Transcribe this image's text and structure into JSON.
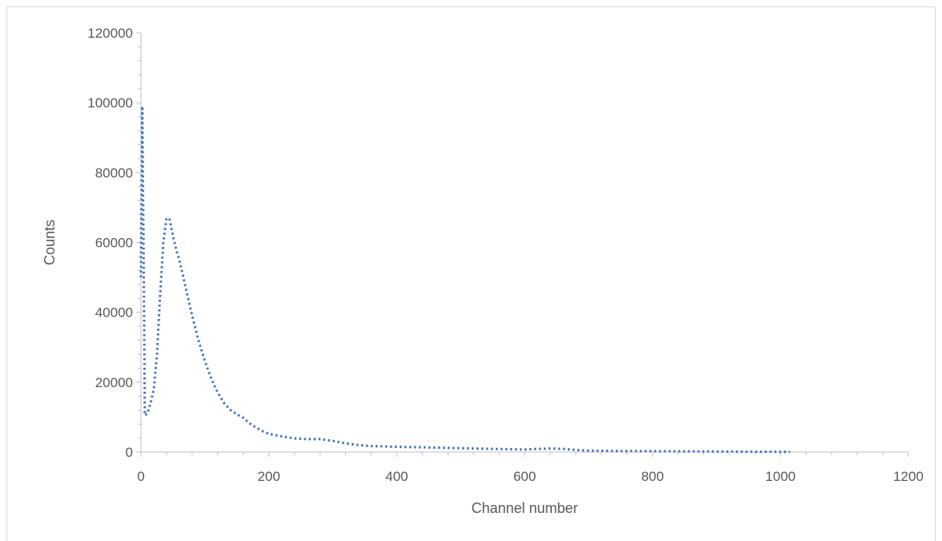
{
  "chart_data": {
    "type": "line",
    "title": "",
    "xlabel": "Channel number",
    "ylabel": "Counts",
    "xlim": [
      0,
      1200
    ],
    "ylim": [
      0,
      120000
    ],
    "x_ticks": [
      0,
      200,
      400,
      600,
      800,
      1000,
      1200
    ],
    "y_ticks": [
      0,
      20000,
      40000,
      60000,
      80000,
      100000,
      120000
    ],
    "x_tick_labels": [
      "0",
      "200",
      "400",
      "600",
      "800",
      "1000",
      "1200"
    ],
    "y_tick_labels": [
      "0",
      "20000",
      "40000",
      "60000",
      "80000",
      "100000",
      "120000"
    ],
    "grid": false,
    "legend": "none",
    "series": [
      {
        "line_style": "dotted",
        "color": "#4472c4",
        "points": [
          [
            0,
            50000
          ],
          [
            2,
            99000
          ],
          [
            4,
            60000
          ],
          [
            6,
            10500
          ],
          [
            10,
            11000
          ],
          [
            15,
            14000
          ],
          [
            20,
            18000
          ],
          [
            25,
            28000
          ],
          [
            30,
            45000
          ],
          [
            35,
            60000
          ],
          [
            40,
            67000
          ],
          [
            45,
            66500
          ],
          [
            50,
            62000
          ],
          [
            55,
            58000
          ],
          [
            60,
            55000
          ],
          [
            70,
            47000
          ],
          [
            80,
            39000
          ],
          [
            90,
            32000
          ],
          [
            100,
            26000
          ],
          [
            110,
            21000
          ],
          [
            120,
            17000
          ],
          [
            130,
            14000
          ],
          [
            140,
            12000
          ],
          [
            150,
            10800
          ],
          [
            160,
            9800
          ],
          [
            170,
            8200
          ],
          [
            180,
            7000
          ],
          [
            190,
            6000
          ],
          [
            200,
            5200
          ],
          [
            220,
            4500
          ],
          [
            240,
            3900
          ],
          [
            260,
            3700
          ],
          [
            280,
            3700
          ],
          [
            300,
            3200
          ],
          [
            320,
            2500
          ],
          [
            340,
            2000
          ],
          [
            360,
            1700
          ],
          [
            380,
            1600
          ],
          [
            400,
            1500
          ],
          [
            450,
            1300
          ],
          [
            500,
            1100
          ],
          [
            550,
            900
          ],
          [
            600,
            700
          ],
          [
            620,
            900
          ],
          [
            640,
            1000
          ],
          [
            660,
            900
          ],
          [
            680,
            600
          ],
          [
            700,
            400
          ],
          [
            750,
            300
          ],
          [
            800,
            250
          ],
          [
            850,
            200
          ],
          [
            900,
            150
          ],
          [
            950,
            100
          ],
          [
            1000,
            80
          ],
          [
            1015,
            50
          ]
        ]
      }
    ]
  }
}
